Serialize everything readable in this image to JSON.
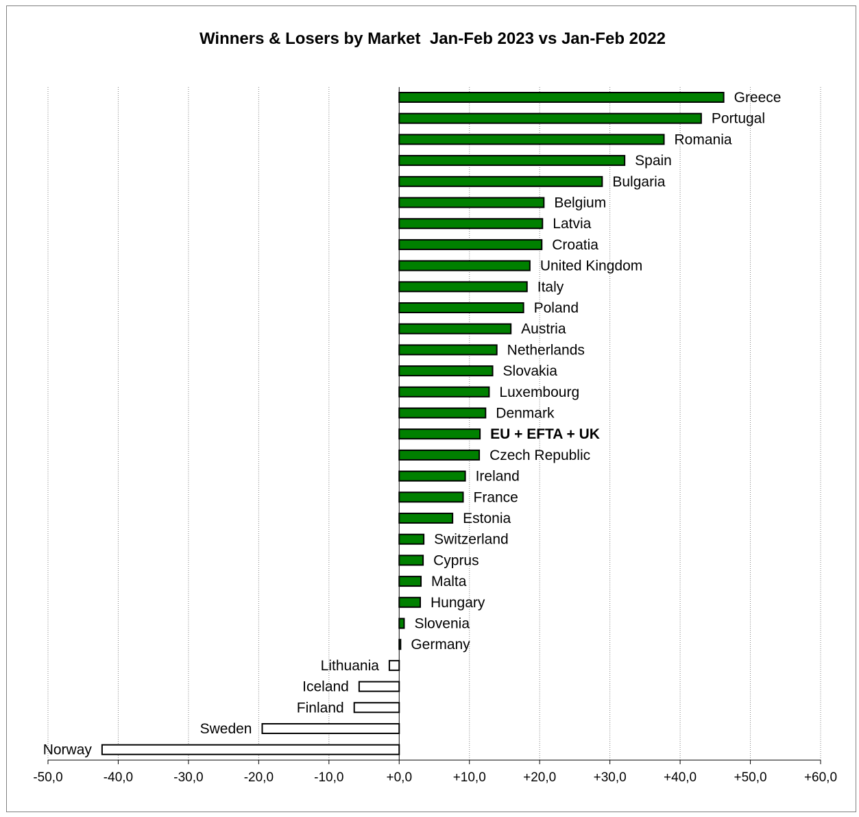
{
  "chart_data": {
    "type": "bar",
    "orientation": "horizontal",
    "title": "Winners & Losers by Market  Jan-Feb 2023 vs Jan-Feb 2022",
    "xlim": [
      -50,
      60
    ],
    "x_ticks": [
      -50,
      -40,
      -30,
      -20,
      -10,
      0,
      10,
      20,
      30,
      40,
      50,
      60
    ],
    "x_tick_labels": [
      "-50,0",
      "-40,0",
      "-30,0",
      "-20,0",
      "-10,0",
      "+0,0",
      "+10,0",
      "+20,0",
      "+30,0",
      "+40,0",
      "+50,0",
      "+60,0"
    ],
    "grid": "vertical dotted",
    "categories": [
      "Greece",
      "Portugal",
      "Romania",
      "Spain",
      "Bulgaria",
      "Belgium",
      "Latvia",
      "Croatia",
      "United Kingdom",
      "Italy",
      "Poland",
      "Austria",
      "Netherlands",
      "Slovakia",
      "Luxembourg",
      "Denmark",
      "EU + EFTA + UK",
      "Czech Republic",
      "Ireland",
      "France",
      "Estonia",
      "Switzerland",
      "Cyprus",
      "Malta",
      "Hungary",
      "Slovenia",
      "Germany",
      "Lithuania",
      "Iceland",
      "Finland",
      "Sweden",
      "Norway"
    ],
    "values": [
      46.2,
      43.0,
      37.7,
      32.1,
      28.9,
      20.6,
      20.4,
      20.3,
      18.6,
      18.2,
      17.7,
      15.9,
      13.9,
      13.3,
      12.8,
      12.3,
      11.5,
      11.4,
      9.4,
      9.1,
      7.6,
      3.5,
      3.4,
      3.1,
      3.0,
      0.7,
      0.2,
      -1.4,
      -5.7,
      -6.4,
      -19.5,
      -42.3
    ],
    "highlight": "EU + EFTA + UK",
    "colors": {
      "positive": "#008000",
      "negative": "#ffffff",
      "outline": "#000000"
    }
  }
}
